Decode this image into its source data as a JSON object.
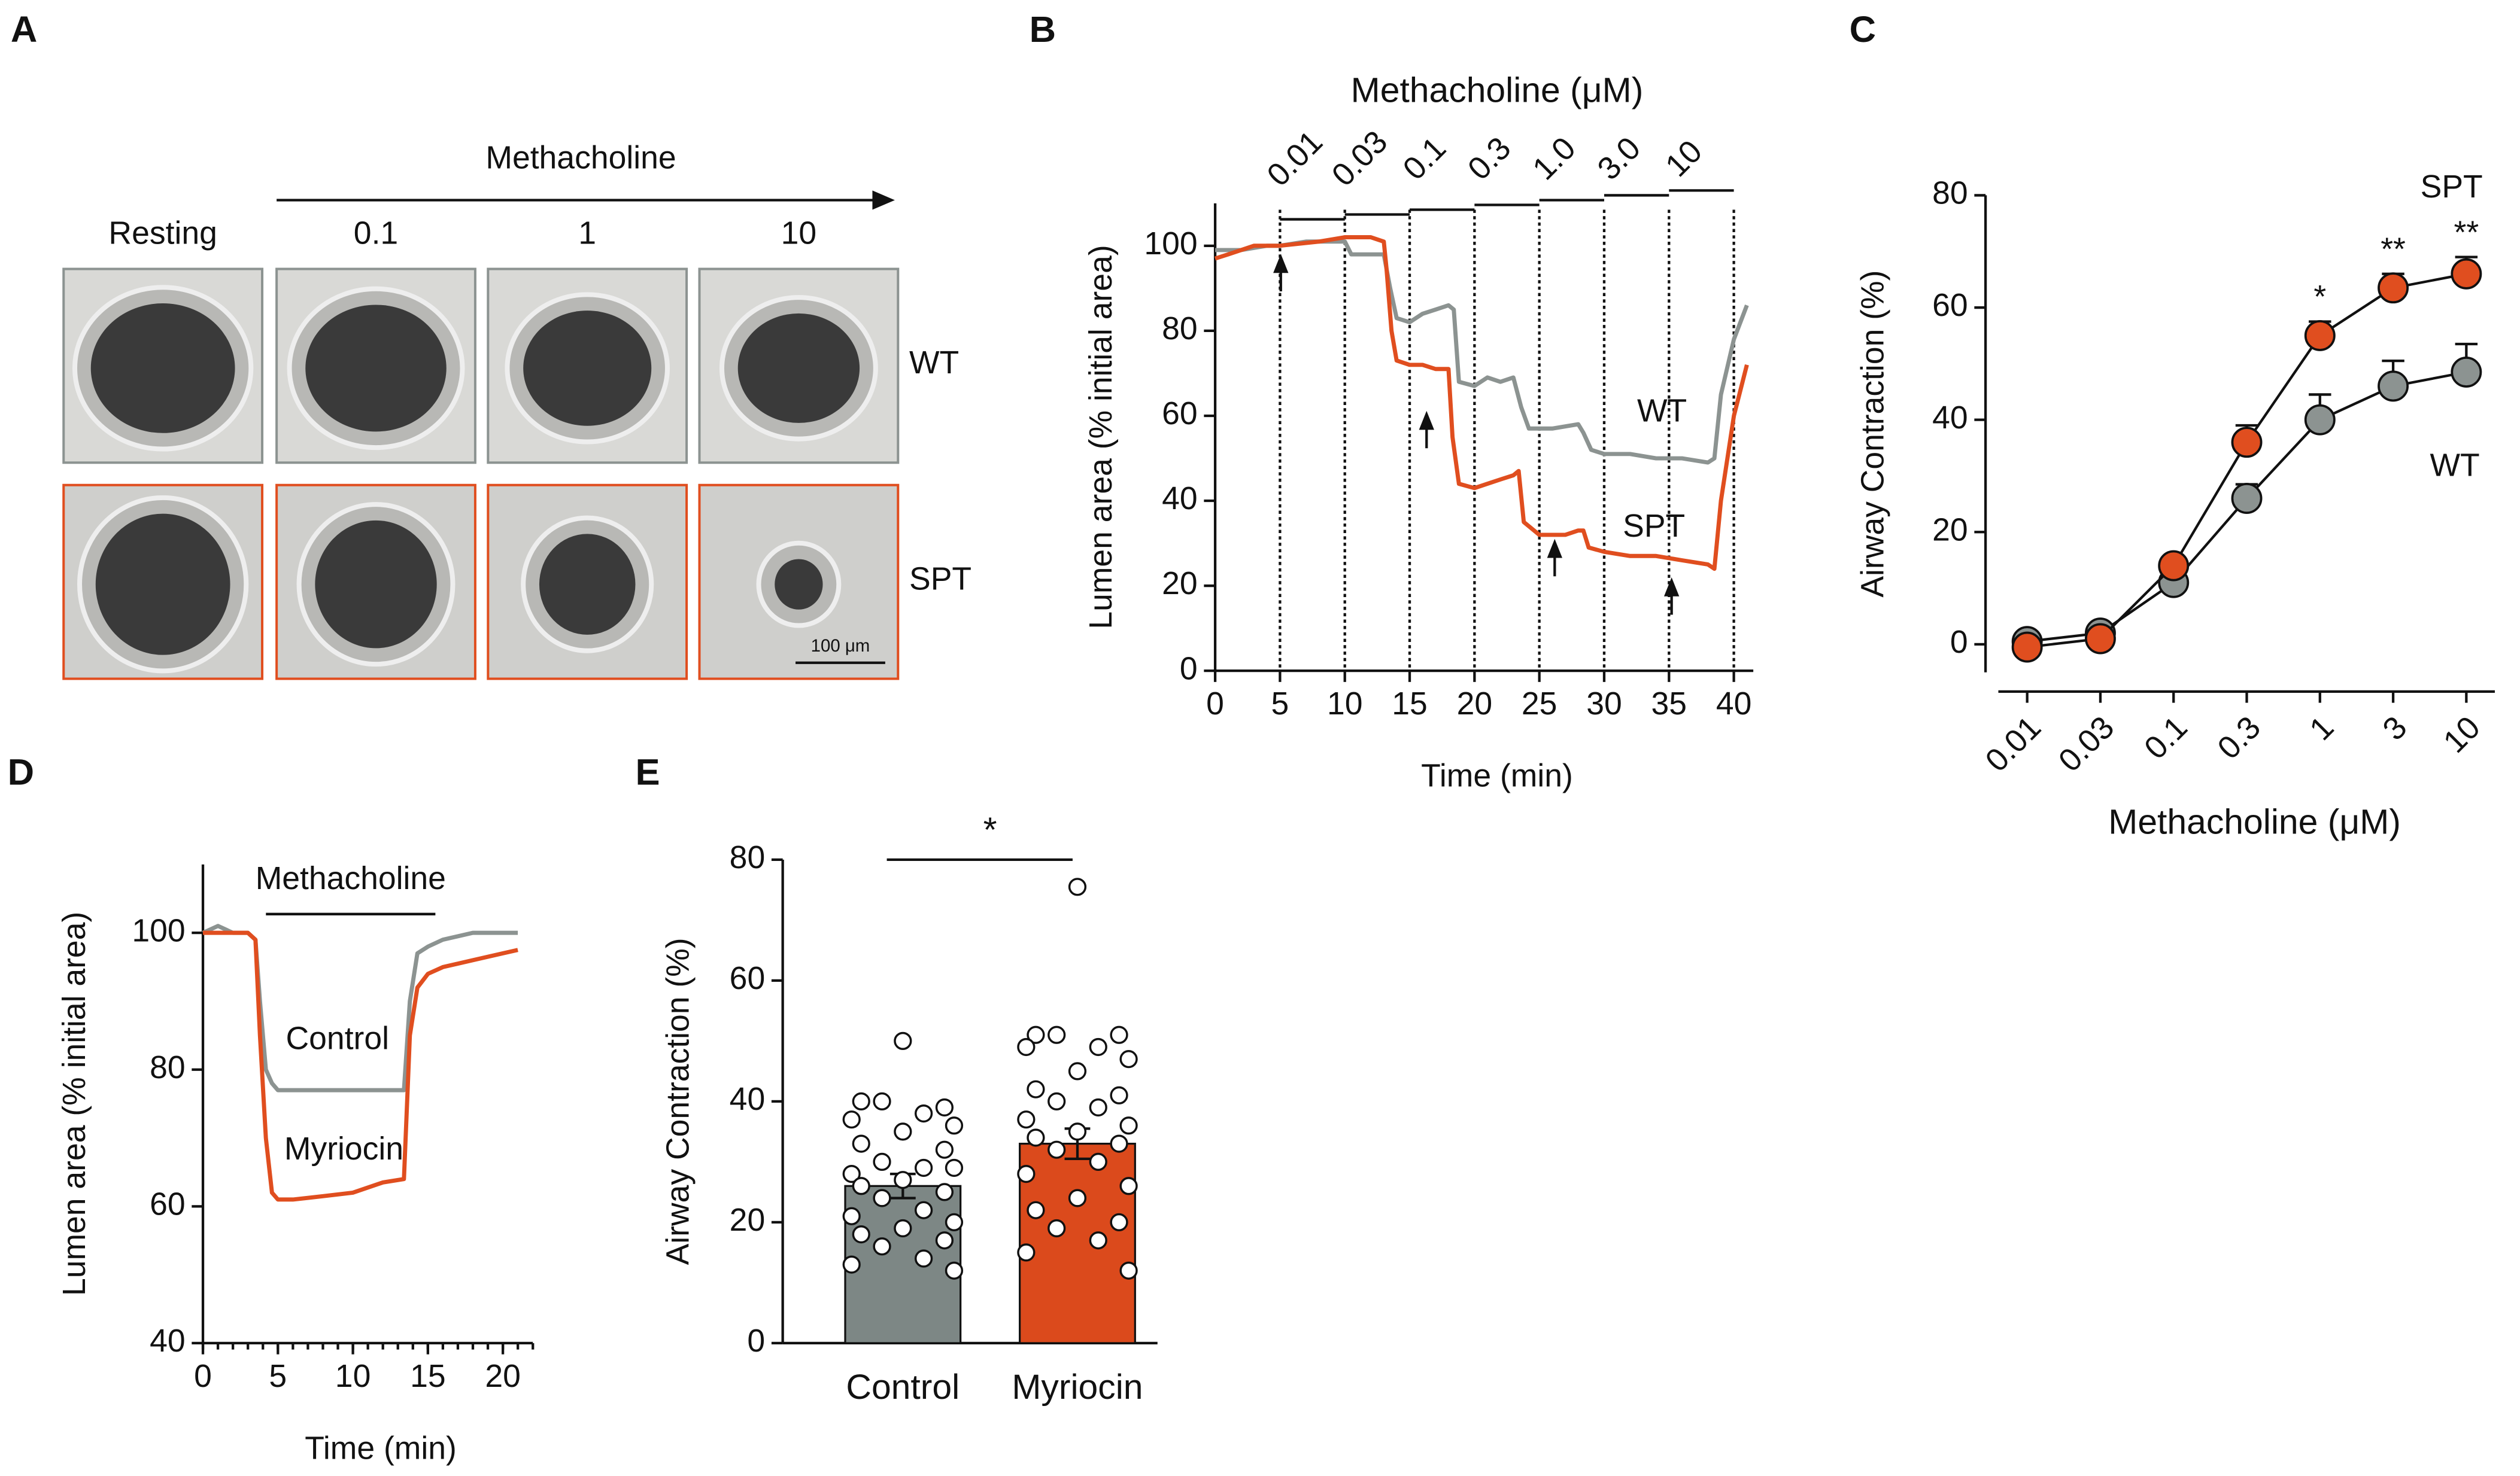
{
  "panel_a": {
    "label": "A",
    "header": "Methacholine",
    "columns": [
      "Resting",
      "0.1",
      "1",
      "10"
    ],
    "rows": [
      "WT",
      "SPT"
    ],
    "scale_bar": "100 μm"
  },
  "chart_data": [
    {
      "type": "line",
      "panel_label": "B",
      "title": "Methacholine (μM)",
      "dose_labels": [
        "0.01",
        "0.03",
        "0.1",
        "0.3",
        "1.0",
        "3.0",
        "10"
      ],
      "dose_times": [
        5,
        10,
        15,
        20,
        25,
        30,
        35,
        40
      ],
      "xlabel": "Time (min)",
      "ylabel": "Lumen area (% initial area)",
      "xlim": [
        0,
        41.5
      ],
      "xticks": [
        0,
        5,
        10,
        15,
        20,
        25,
        30,
        35,
        40
      ],
      "ylim": [
        0,
        110
      ],
      "yticks": [
        0,
        20,
        40,
        60,
        80,
        100
      ],
      "series": [
        {
          "name": "WT",
          "color": "#8c9391",
          "x": [
            0,
            2,
            4,
            5,
            7,
            9,
            10,
            10.5,
            13,
            13.5,
            14,
            15,
            16,
            17,
            18,
            18.4,
            18.8,
            20,
            21,
            22,
            23,
            23.6,
            24.2,
            26,
            28,
            28.4,
            29,
            30,
            32,
            34,
            36,
            38,
            38.5,
            39,
            40,
            41
          ],
          "values": [
            99,
            99,
            100,
            100,
            101,
            101,
            101,
            98,
            98,
            90,
            83,
            82,
            84,
            85,
            86,
            85,
            68,
            67,
            69,
            68,
            69,
            62,
            57,
            57,
            58,
            56,
            52,
            51,
            51,
            50,
            50,
            49,
            50,
            65,
            78,
            86
          ]
        },
        {
          "name": "SPT",
          "color": "#e04e1f",
          "x": [
            0,
            1,
            2,
            3,
            5,
            8,
            10,
            12,
            13,
            13.2,
            13.6,
            14,
            15,
            16,
            17,
            18,
            18.3,
            18.8,
            20,
            21,
            22,
            23,
            23.4,
            23.8,
            25,
            27,
            28,
            28.4,
            28.8,
            30,
            32,
            34,
            36,
            38,
            38.5,
            39,
            40,
            41
          ],
          "values": [
            97,
            98,
            99,
            100,
            100,
            101,
            102,
            102,
            101,
            95,
            80,
            73,
            72,
            72,
            71,
            71,
            55,
            44,
            43,
            44,
            45,
            46,
            47,
            35,
            32,
            32,
            33,
            33,
            29,
            28,
            27,
            27,
            26,
            25,
            24,
            40,
            60,
            72
          ]
        }
      ]
    },
    {
      "type": "line_errorbar",
      "panel_label": "C",
      "categories": [
        "0.01",
        "0.03",
        "0.1",
        "0.3",
        "1",
        "3",
        "10"
      ],
      "xlabel": "Methacholine (μM)",
      "ylabel": "Airway Contraction (%)",
      "ylim": [
        -5,
        80
      ],
      "yticks": [
        0,
        20,
        40,
        60,
        80
      ],
      "series": [
        {
          "name": "SPT",
          "color": "#e04e1f",
          "values": [
            -0.5,
            1,
            14,
            36,
            55,
            63.5,
            66
          ],
          "errors": [
            0.5,
            0.5,
            1.5,
            3,
            2.5,
            2.5,
            3
          ]
        },
        {
          "name": "WT",
          "color": "#8c9391",
          "values": [
            0.5,
            2,
            11,
            26,
            40,
            46,
            48.5
          ],
          "errors": [
            0.5,
            0.5,
            1,
            2.5,
            4.5,
            4.5,
            5
          ]
        }
      ],
      "significance": [
        null,
        null,
        null,
        null,
        "*",
        "**",
        "**"
      ]
    },
    {
      "type": "line",
      "panel_label": "D",
      "stimulus": {
        "label": "Methacholine",
        "start": 4.2,
        "end": 15.5
      },
      "xlabel": "Time (min)",
      "ylabel": "Lumen area (% initial area)",
      "xlim": [
        0,
        22
      ],
      "xticks": [
        0,
        5,
        10,
        15,
        20
      ],
      "ylim": [
        40,
        110
      ],
      "yticks": [
        40,
        60,
        80,
        100
      ],
      "series": [
        {
          "name": "Control",
          "color": "#8c9391",
          "x": [
            0,
            1,
            2,
            3,
            3.5,
            3.8,
            4.2,
            4.6,
            5,
            6,
            8,
            10,
            12,
            13.4,
            13.8,
            14.3,
            15,
            16,
            18,
            20,
            21
          ],
          "values": [
            100,
            101,
            100,
            100,
            99,
            90,
            80,
            78,
            77,
            77,
            77,
            77,
            77,
            77,
            90,
            97,
            98,
            99,
            100,
            100,
            100
          ]
        },
        {
          "name": "Myriocin",
          "color": "#e04e1f",
          "x": [
            0,
            1,
            2,
            3,
            3.5,
            3.8,
            4.2,
            4.6,
            5,
            6,
            8,
            10,
            12,
            13.4,
            13.8,
            14.3,
            15,
            16,
            18,
            20,
            21
          ],
          "values": [
            100,
            100,
            100,
            100,
            99,
            85,
            70,
            62,
            61,
            61,
            61.5,
            62,
            63.5,
            64,
            85,
            92,
            94,
            95,
            96,
            97,
            97.5
          ]
        }
      ]
    },
    {
      "type": "bar_scatter",
      "panel_label": "E",
      "categories": [
        "Control",
        "Myriocin"
      ],
      "values": [
        26,
        33
      ],
      "errors": [
        2,
        2.5
      ],
      "colors": [
        "#7d8785",
        "#db4a1c"
      ],
      "points": [
        [
          50,
          40,
          39,
          40,
          38,
          37,
          36,
          35,
          33,
          32,
          30,
          29,
          28,
          29,
          27,
          26,
          25,
          24,
          22,
          21,
          20,
          19,
          18,
          17,
          16,
          14,
          13,
          12
        ],
        [
          75.5,
          51,
          51,
          51,
          49,
          49,
          47,
          45,
          42,
          41,
          40,
          39,
          37,
          36,
          35,
          34,
          33,
          32,
          30,
          28,
          26,
          24,
          22,
          20,
          19,
          17,
          15,
          12
        ]
      ],
      "ylabel": "Airway Contraction (%)",
      "ylim": [
        0,
        80
      ],
      "yticks": [
        0,
        20,
        40,
        60,
        80
      ],
      "significance": "*"
    }
  ]
}
